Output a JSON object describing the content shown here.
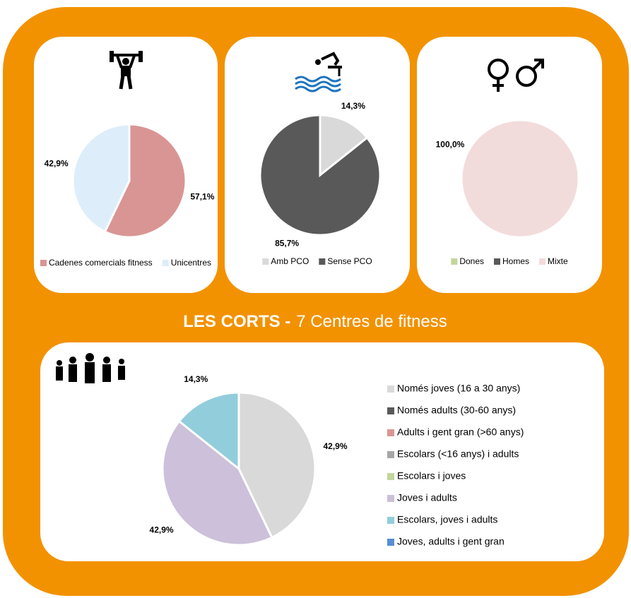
{
  "header": {
    "title": "LES CORTS -",
    "subtitle": "7 Centres de fitness"
  },
  "chart_data": [
    {
      "type": "pie",
      "categories": [
        "Cadenes comercials fitness",
        "Unicentres"
      ],
      "values": [
        57.1,
        42.9
      ],
      "value_labels": [
        "57,1%",
        "42,9%"
      ],
      "colors": [
        "#d99594",
        "#ddeefa"
      ],
      "legend": "bottom"
    },
    {
      "type": "pie",
      "categories": [
        "Amb PCO",
        "Sense PCO"
      ],
      "values": [
        14.3,
        85.7
      ],
      "value_labels": [
        "14,3%",
        "85,7%"
      ],
      "colors": [
        "#d9d9d9",
        "#595959"
      ],
      "legend": "bottom"
    },
    {
      "type": "pie",
      "categories": [
        "Dones",
        "Homes",
        "Mixte"
      ],
      "values": [
        0,
        0,
        100
      ],
      "value_labels": [
        null,
        null,
        "100,0%"
      ],
      "colors": [
        "#c3d69b",
        "#595959",
        "#f2dcdb"
      ],
      "legend": "bottom"
    },
    {
      "type": "pie",
      "categories": [
        "Només joves (16 a 30 anys)",
        "Només adults (30-60 anys)",
        "Adults i gent gran (>60 anys)",
        "Escolars (<16 anys) i adults",
        "Escolars i joves",
        "Joves i adults",
        "Escolars, joves i adults",
        "Joves, adults i gent gran"
      ],
      "values": [
        42.9,
        0,
        0,
        0,
        0,
        42.9,
        14.3,
        0
      ],
      "value_labels": [
        "42,9%",
        null,
        null,
        null,
        null,
        "42,9%",
        "14,3%",
        null
      ],
      "colors": [
        "#d9d9d9",
        "#595959",
        "#da9694",
        "#a6a6a6",
        "#c3d69b",
        "#ccc0da",
        "#92cddc",
        "#558ed5"
      ],
      "legend": "right"
    }
  ]
}
